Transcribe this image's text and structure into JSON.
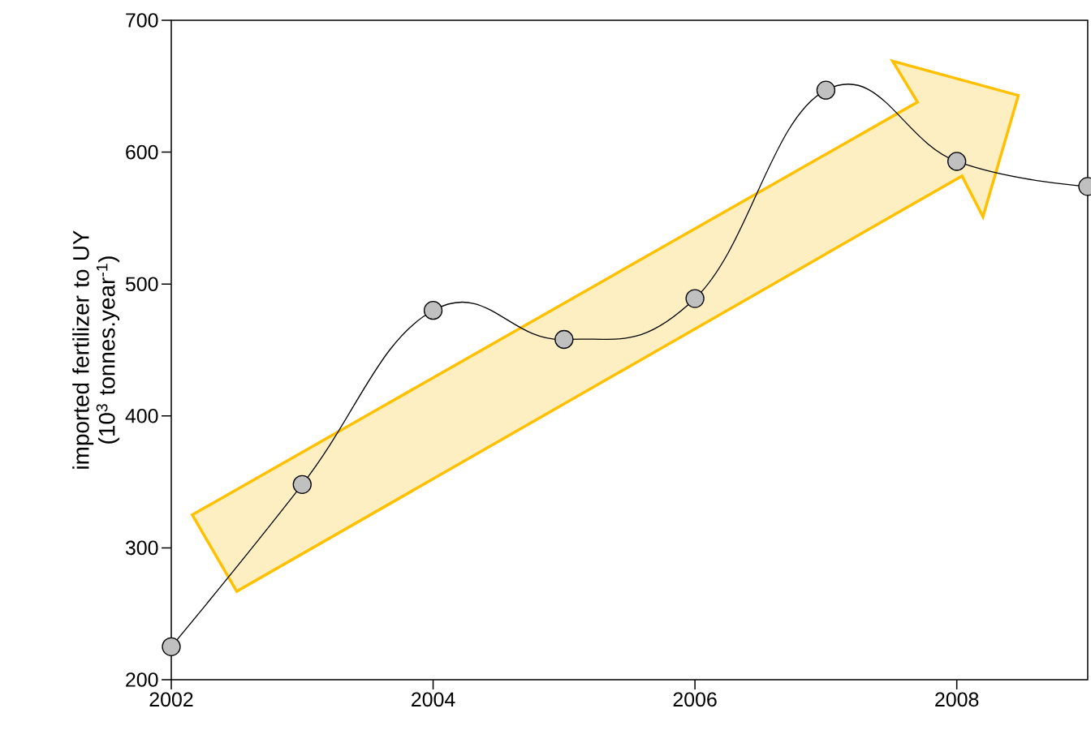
{
  "chart_data": {
    "type": "line",
    "ylabel": "imported fertilizer to UY (10$^{3}$ tonnes.year$^{-1}$)",
    "x": [
      2002,
      2003,
      2004,
      2005,
      2006,
      2007,
      2008,
      2009
    ],
    "series": [
      {
        "color": "#000000",
        "values": [
          225,
          348,
          480,
          458,
          489,
          647,
          593,
          574
        ]
      }
    ],
    "xlim": [
      2002,
      2009
    ],
    "xticks": [
      2002,
      2004,
      2006,
      2008
    ],
    "ylim": [
      200,
      700
    ],
    "yticks": [
      200,
      300,
      400,
      500,
      600,
      700
    ],
    "marker": "circle"
  }
}
